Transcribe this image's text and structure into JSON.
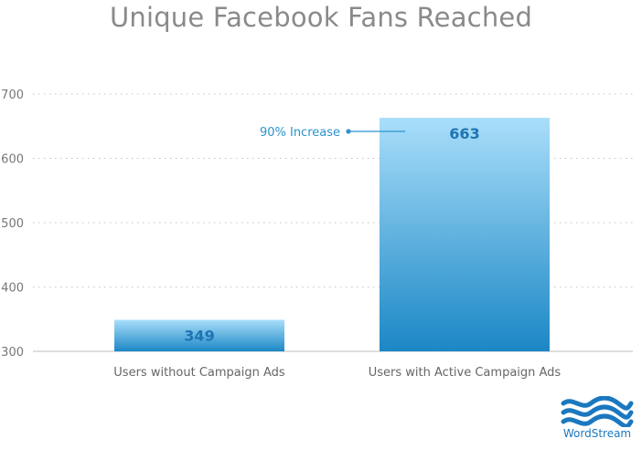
{
  "chart_data": {
    "type": "bar",
    "title": "Unique Facebook Fans Reached",
    "categories": [
      "Users without Campaign Ads",
      "Users with Active Campaign Ads"
    ],
    "values": [
      349,
      663
    ],
    "data_labels": [
      "349",
      "663"
    ],
    "ylim": [
      300,
      700
    ],
    "yticks": [
      300,
      400,
      500,
      600,
      700
    ],
    "grid": true,
    "annotation": "90% Increase",
    "bar_color_top": "#a9defa",
    "bar_color_bottom": "#1b87c5",
    "value_label_color": "#1e74b3",
    "annotation_color": "#2c93cd"
  },
  "logo": {
    "text": "WordStream",
    "color": "#1b78bf"
  }
}
